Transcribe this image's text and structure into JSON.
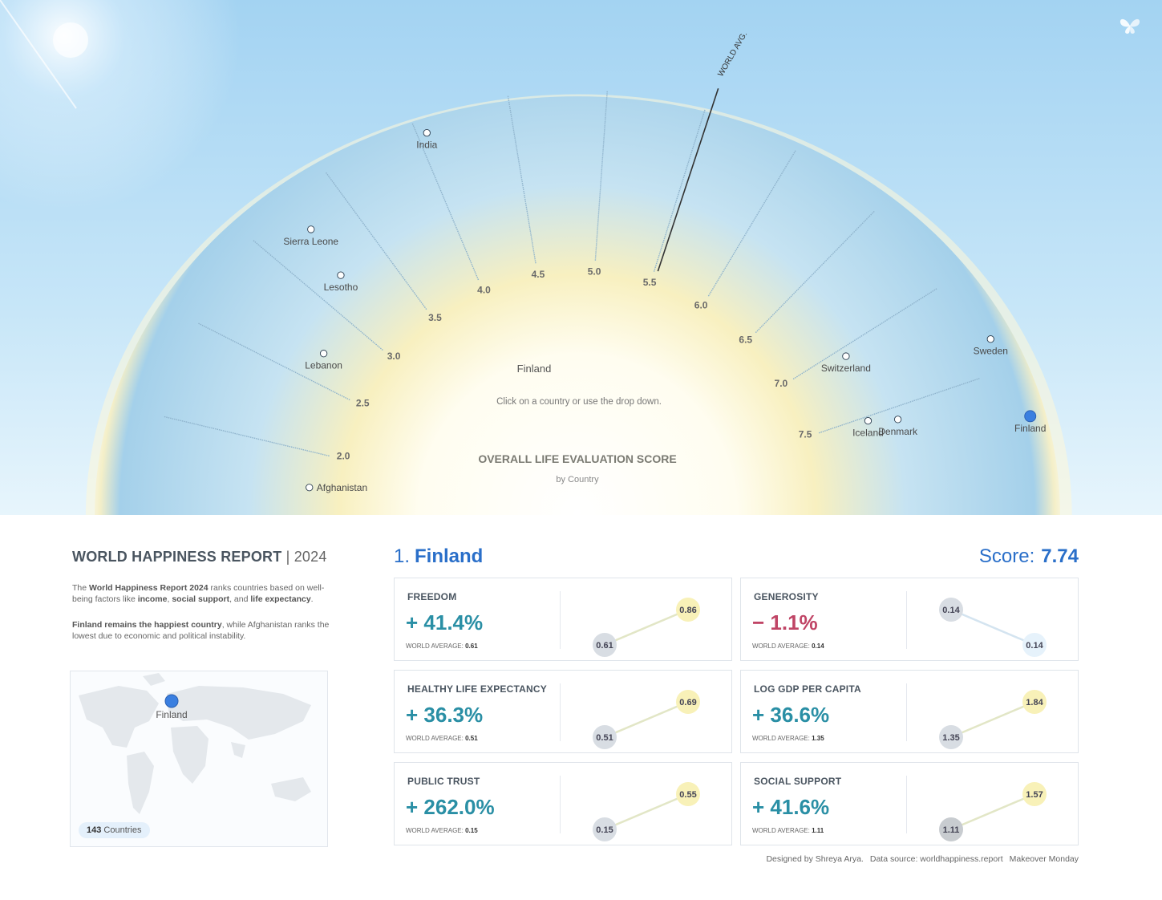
{
  "chart_data": {
    "type": "scatter",
    "title": "OVERALL LIFE EVALUATION SCORE",
    "subtitle": "by Country",
    "hint": "Click on a country or use the drop down.",
    "selected_label": "Finland",
    "world_avg_label": "WORLD AVG.",
    "world_avg": 5.53,
    "axis_ticks": [
      "2.0",
      "2.5",
      "3.0",
      "3.5",
      "4.0",
      "4.5",
      "5.0",
      "5.5",
      "6.0",
      "6.5",
      "7.0",
      "7.5"
    ],
    "axis_range": [
      1.8,
      7.9
    ],
    "labeled_countries": [
      {
        "name": "Afghanistan",
        "score": 1.72
      },
      {
        "name": "Lebanon",
        "score": 2.71
      },
      {
        "name": "Lesotho",
        "score": 3.19
      },
      {
        "name": "Sierra Leone",
        "score": 3.25
      },
      {
        "name": "India",
        "score": 4.05
      },
      {
        "name": "Switzerland",
        "score": 7.06
      },
      {
        "name": "Sweden",
        "score": 7.34
      },
      {
        "name": "Iceland",
        "score": 7.53
      },
      {
        "name": "Denmark",
        "score": 7.58
      },
      {
        "name": "Finland",
        "score": 7.74
      }
    ],
    "colors": {
      "dot": "#ffffff",
      "dot_stroke": "#2c3e50",
      "selected": "#3a7fe0",
      "sky": "#a9d9f5",
      "glow": "#fffdf2"
    }
  },
  "report": {
    "title": "WORLD HAPPINESS REPORT",
    "separator": " | ",
    "year": "2024",
    "intro1": [
      {
        "t": "The ",
        "b": false
      },
      {
        "t": "World Happiness Report 2024",
        "b": true
      },
      {
        "t": " ranks countries based on well-being factors like ",
        "b": false
      },
      {
        "t": "income",
        "b": true
      },
      {
        "t": ", ",
        "b": false
      },
      {
        "t": "social support",
        "b": true
      },
      {
        "t": ", and ",
        "b": false
      },
      {
        "t": "life expectancy",
        "b": true
      },
      {
        "t": ".",
        "b": false
      }
    ],
    "intro2": [
      {
        "t": "Finland remains the happiest country",
        "b": true
      },
      {
        "t": ", while Afghanistan ranks the lowest due to economic and political instability.",
        "b": false
      }
    ]
  },
  "map": {
    "label": "Finland",
    "count": "143",
    "count_label": " Countries"
  },
  "selected": {
    "rank": "1.",
    "name": "Finland",
    "score_label": "Score:",
    "score": "7.74"
  },
  "metrics": [
    {
      "name": "FREEDOM",
      "pct": "+ 41.4%",
      "neg": false,
      "world_label": "WORLD AVERAGE:",
      "world": "0.61",
      "country": "0.86",
      "up": true
    },
    {
      "name": "GENEROSITY",
      "pct": "− 1.1%",
      "neg": true,
      "world_label": "WORLD AVERAGE:",
      "world": "0.14",
      "country": "0.14",
      "up": false
    },
    {
      "name": "HEALTHY LIFE EXPECTANCY",
      "pct": "+ 36.3%",
      "neg": false,
      "world_label": "WORLD AVERAGE:",
      "world": "0.51",
      "country": "0.69",
      "up": true
    },
    {
      "name": "LOG GDP PER CAPITA",
      "pct": "+ 36.6%",
      "neg": false,
      "world_label": "WORLD AVERAGE:",
      "world": "1.35",
      "country": "1.84",
      "up": true
    },
    {
      "name": "PUBLIC TRUST",
      "pct": "+ 262.0%",
      "neg": false,
      "world_label": "WORLD AVERAGE:",
      "world": "0.15",
      "country": "0.55",
      "up": true
    },
    {
      "name": "SOCIAL SUPPORT",
      "pct": "+ 41.6%",
      "neg": false,
      "world_label": "WORLD AVERAGE:",
      "world": "1.11",
      "country": "1.57",
      "up": true
    }
  ],
  "footer": {
    "designer": "Designed by Shreya Arya.",
    "source": "Data source: worldhappiness.report",
    "tag": "Makeover Monday"
  }
}
